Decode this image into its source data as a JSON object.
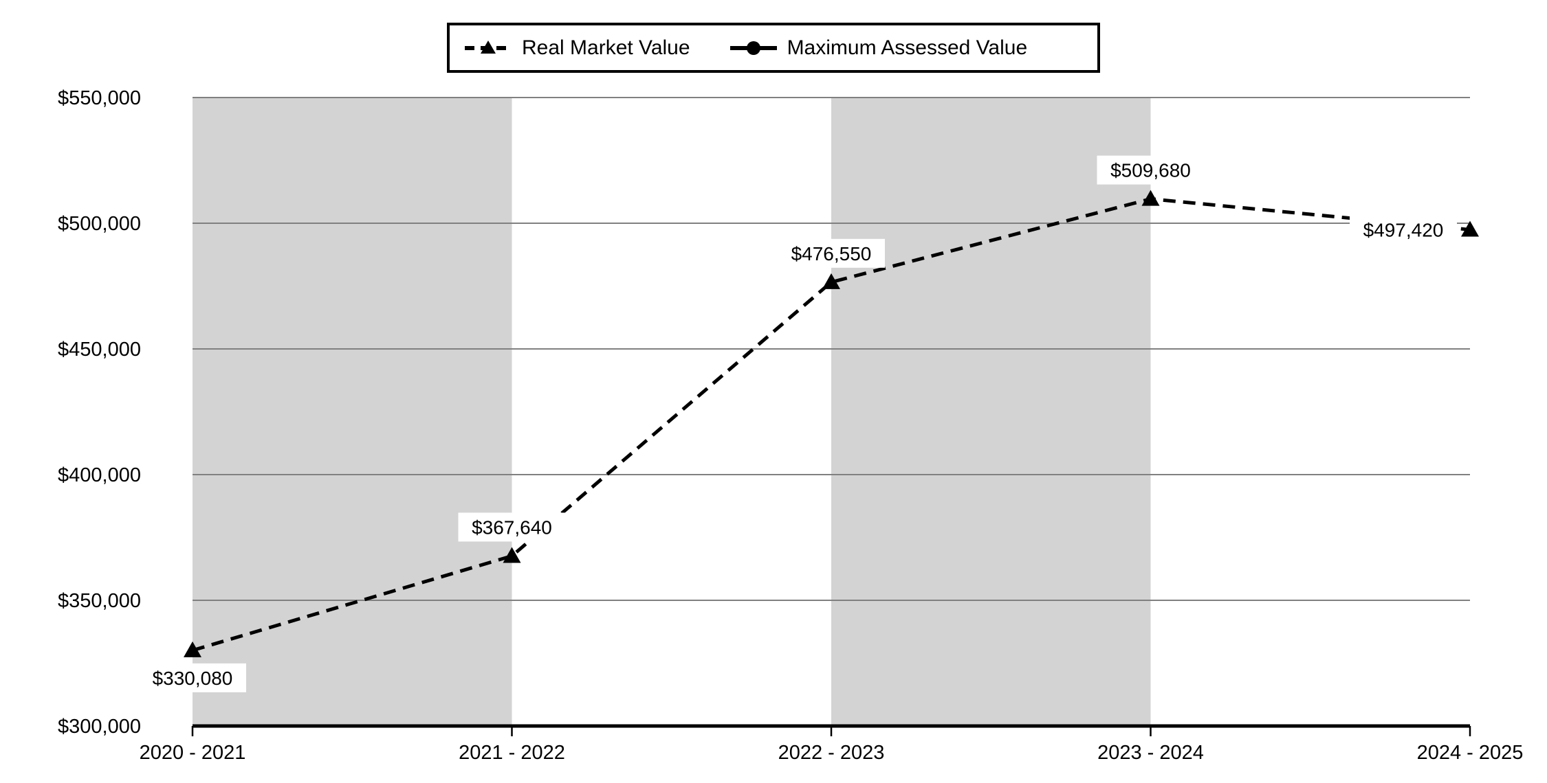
{
  "page": {
    "background": "#ffffff"
  },
  "legend": {
    "items": [
      {
        "label": "Real Market Value",
        "icon": "dashed-line-triangle-marker-icon"
      },
      {
        "label": "Maximum Assessed Value",
        "icon": "solid-line-circle-marker-icon"
      }
    ]
  },
  "colors": {
    "series": "#000000",
    "band": "#d3d3d3",
    "gridline": "#808080",
    "axis": "#000000",
    "label_background": "#ffffff"
  },
  "chart_data": {
    "type": "line",
    "title": "",
    "xlabel": "",
    "ylabel": "",
    "categories": [
      "2020 - 2021",
      "2021 - 2022",
      "2022 - 2023",
      "2023 - 2024",
      "2024 - 2025"
    ],
    "series": [
      {
        "name": "Real Market Value",
        "line_style": "dashed",
        "marker": "triangle",
        "color": "#000000",
        "values": [
          330080,
          367640,
          476550,
          509680,
          497420
        ],
        "data_labels": [
          "$330,080",
          "$367,640",
          "$476,550",
          "$509,680",
          "$497,420"
        ],
        "data_label_positions": [
          "below",
          "above",
          "above",
          "above",
          "left"
        ]
      },
      {
        "name": "Maximum Assessed Value",
        "line_style": "solid",
        "marker": "circle",
        "color": "#000000",
        "values": [],
        "data_labels": []
      }
    ],
    "y_axis": {
      "min": 300000,
      "max": 550000,
      "tick_step": 50000,
      "tick_labels": [
        "$300,000",
        "$350,000",
        "$400,000",
        "$450,000",
        "$500,000",
        "$550,000"
      ]
    },
    "x_axis": {
      "tick_labels": [
        "2020 - 2021",
        "2021 - 2022",
        "2022 - 2023",
        "2023 - 2024",
        "2024 - 2025"
      ]
    },
    "grid": true,
    "legend_position": "top-center",
    "background_bands": {
      "color": "#d3d3d3",
      "shaded_slots": [
        0,
        2
      ]
    }
  }
}
